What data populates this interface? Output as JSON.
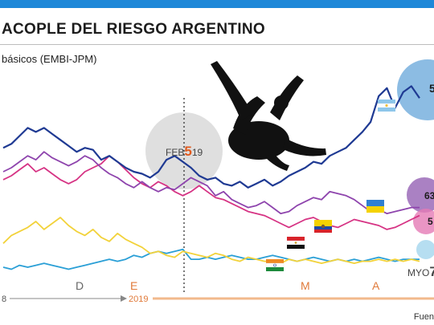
{
  "header": {
    "title": "ACOPLE DEL RIESGO ARGENTINO",
    "subtitle": "básicos (EMBI-JPM)",
    "source": "Fuen"
  },
  "annotations": {
    "feb_prefix": "FEB",
    "feb_big": "5",
    "feb_suffix": "19",
    "myo_prefix": "MYO",
    "myo_big": "7",
    "label_63": "63",
    "label_5a": "5",
    "label_5b": "5"
  },
  "timeline": {
    "year_start": "8",
    "year_2019": "2019",
    "months": [
      "D",
      "E",
      "M",
      "A"
    ]
  },
  "colors": {
    "argentina": "#1f3a93",
    "ukraine": "#8e44ad",
    "ecuador": "#d63384",
    "egypt": "#f2d23a",
    "india": "#2a9fd6",
    "accent_blue": "#1e88d8",
    "timeline_2019": "#f2b98c"
  },
  "chart_data": {
    "type": "line",
    "title": "ACOPLE DEL RIESGO ARGENTINO",
    "ylabel": "básicos (EMBI-JPM)",
    "x_labels": [
      "D",
      "E",
      "M",
      "A"
    ],
    "series": [
      {
        "values": [
          0.62,
          0.64,
          0.68,
          0.72,
          0.7,
          0.72,
          0.69,
          0.66,
          0.63,
          0.6,
          0.62,
          0.61,
          0.56,
          0.58,
          0.55,
          0.52,
          0.5,
          0.49,
          0.47,
          0.5,
          0.56,
          0.58,
          0.55,
          0.52,
          0.48,
          0.46,
          0.47,
          0.44,
          0.43,
          0.45,
          0.42,
          0.44,
          0.46,
          0.43,
          0.45,
          0.48,
          0.5,
          0.52,
          0.55,
          0.54,
          0.58,
          0.6,
          0.62,
          0.66,
          0.7,
          0.75,
          0.88,
          0.92,
          0.82,
          0.9,
          0.93,
          0.87
        ]
      },
      {
        "values": [
          0.5,
          0.52,
          0.55,
          0.58,
          0.56,
          0.6,
          0.57,
          0.55,
          0.53,
          0.55,
          0.58,
          0.56,
          0.52,
          0.49,
          0.47,
          0.44,
          0.42,
          0.45,
          0.42,
          0.4,
          0.42,
          0.41,
          0.44,
          0.47,
          0.45,
          0.43,
          0.38,
          0.4,
          0.36,
          0.34,
          0.32,
          0.33,
          0.35,
          0.32,
          0.29,
          0.3,
          0.33,
          0.35,
          0.37,
          0.36,
          0.4,
          0.39,
          0.38,
          0.36,
          0.33,
          0.3,
          0.31,
          0.29,
          0.3,
          0.31,
          0.32,
          0.32
        ]
      },
      {
        "values": [
          0.46,
          0.48,
          0.51,
          0.54,
          0.5,
          0.52,
          0.49,
          0.46,
          0.44,
          0.46,
          0.5,
          0.52,
          0.54,
          0.58,
          0.55,
          0.51,
          0.47,
          0.44,
          0.42,
          0.45,
          0.43,
          0.4,
          0.38,
          0.4,
          0.43,
          0.4,
          0.37,
          0.36,
          0.34,
          0.32,
          0.3,
          0.29,
          0.28,
          0.26,
          0.24,
          0.22,
          0.24,
          0.26,
          0.27,
          0.25,
          0.23,
          0.22,
          0.24,
          0.26,
          0.25,
          0.24,
          0.23,
          0.21,
          0.22,
          0.24,
          0.26,
          0.28
        ]
      },
      {
        "values": [
          0.14,
          0.18,
          0.2,
          0.22,
          0.25,
          0.21,
          0.24,
          0.27,
          0.23,
          0.2,
          0.18,
          0.21,
          0.17,
          0.15,
          0.19,
          0.16,
          0.14,
          0.12,
          0.09,
          0.1,
          0.08,
          0.07,
          0.1,
          0.09,
          0.08,
          0.07,
          0.09,
          0.08,
          0.06,
          0.05,
          0.07,
          0.06,
          0.05,
          0.05,
          0.04,
          0.06,
          0.05,
          0.06,
          0.05,
          0.04,
          0.05,
          0.06,
          0.05,
          0.04,
          0.05,
          0.05,
          0.06,
          0.05,
          0.06,
          0.05,
          0.06,
          0.05
        ]
      },
      {
        "values": [
          0.02,
          0.01,
          0.03,
          0.02,
          0.03,
          0.04,
          0.03,
          0.02,
          0.01,
          0.02,
          0.03,
          0.04,
          0.05,
          0.06,
          0.05,
          0.06,
          0.08,
          0.07,
          0.09,
          0.1,
          0.09,
          0.1,
          0.11,
          0.06,
          0.06,
          0.07,
          0.06,
          0.07,
          0.08,
          0.07,
          0.06,
          0.06,
          0.07,
          0.08,
          0.07,
          0.06,
          0.05,
          0.06,
          0.07,
          0.06,
          0.05,
          0.06,
          0.05,
          0.06,
          0.05,
          0.06,
          0.07,
          0.06,
          0.05,
          0.06,
          0.06,
          0.06
        ]
      }
    ]
  }
}
